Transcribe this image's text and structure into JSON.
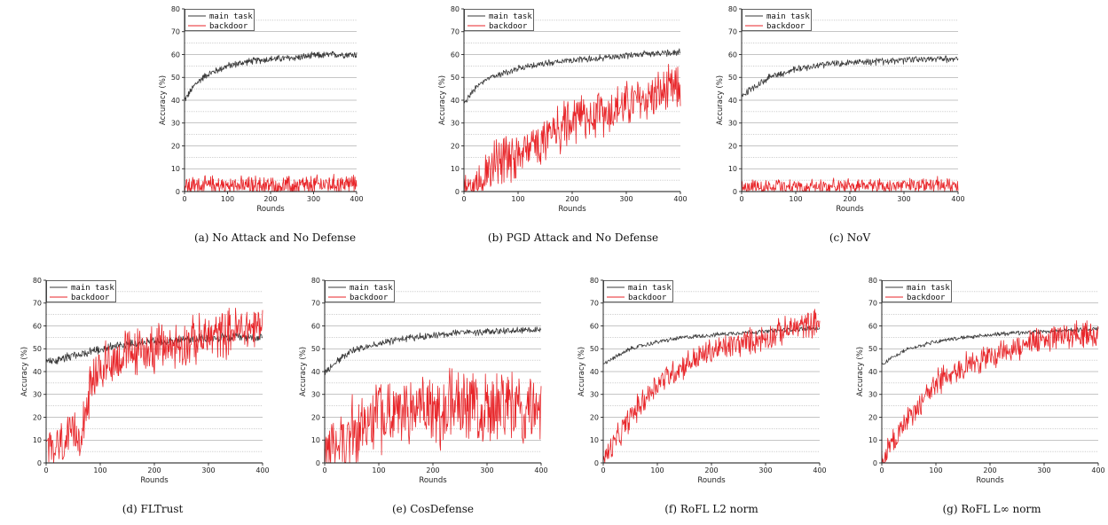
{
  "chart_data": [
    {
      "type": "line",
      "caption": "(a)  No Attack and No Defense",
      "xlabel": "Rounds",
      "ylabel": "Accuracy  (%)",
      "xlim": [
        0,
        400
      ],
      "ylim": [
        0,
        80
      ],
      "xticks": [
        0,
        100,
        200,
        300,
        400
      ],
      "yticks": [
        0,
        10,
        20,
        30,
        40,
        50,
        60,
        70,
        80
      ],
      "legend": "top-left",
      "series": [
        {
          "name": "main task",
          "color": "#3a3a3a",
          "x": [
            0,
            25,
            50,
            100,
            150,
            200,
            250,
            300,
            350,
            400
          ],
          "values": [
            40,
            47,
            51,
            55,
            57,
            58,
            58.5,
            59.5,
            60,
            60
          ],
          "noise": 1.3
        },
        {
          "name": "backdoor",
          "color": "#e8262a",
          "x": [
            0,
            100,
            200,
            300,
            400
          ],
          "values": [
            2.5,
            2.5,
            2.5,
            3,
            3.5
          ],
          "noise": 3.5,
          "floor": 0
        }
      ]
    },
    {
      "type": "line",
      "caption": "(b)  PGD Attack and No Defense",
      "xlabel": "Rounds",
      "ylabel": "Accuracy  (%)",
      "xlim": [
        0,
        400
      ],
      "ylim": [
        0,
        80
      ],
      "xticks": [
        0,
        100,
        200,
        300,
        400
      ],
      "yticks": [
        0,
        10,
        20,
        30,
        40,
        50,
        60,
        70,
        80
      ],
      "legend": "top-left",
      "series": [
        {
          "name": "main task",
          "color": "#3a3a3a",
          "x": [
            0,
            25,
            50,
            100,
            150,
            200,
            250,
            300,
            350,
            400
          ],
          "values": [
            39,
            46,
            50,
            54,
            56,
            57.5,
            58.5,
            59.5,
            60.5,
            61
          ],
          "noise": 1.2
        },
        {
          "name": "backdoor",
          "color": "#e8262a",
          "x": [
            0,
            20,
            50,
            100,
            150,
            200,
            250,
            300,
            350,
            400
          ],
          "values": [
            1,
            4,
            10,
            17,
            24,
            30,
            34,
            38,
            42,
            45
          ],
          "noise": 9,
          "floor": 0
        }
      ]
    },
    {
      "type": "line",
      "caption": "(c)  NoV",
      "xlabel": "Rounds",
      "ylabel": "Accuracy  (%)",
      "xlim": [
        0,
        400
      ],
      "ylim": [
        0,
        80
      ],
      "xticks": [
        0,
        100,
        200,
        300,
        400
      ],
      "yticks": [
        0,
        10,
        20,
        30,
        40,
        50,
        60,
        70,
        80
      ],
      "legend": "top-left",
      "series": [
        {
          "name": "main task",
          "color": "#3a3a3a",
          "x": [
            0,
            25,
            50,
            100,
            150,
            200,
            250,
            300,
            350,
            400
          ],
          "values": [
            42,
            46,
            50,
            53.5,
            55.5,
            56.5,
            57,
            57.5,
            58,
            58
          ],
          "noise": 1.3
        },
        {
          "name": "backdoor",
          "color": "#e8262a",
          "x": [
            0,
            100,
            200,
            300,
            400
          ],
          "values": [
            2,
            2,
            2.5,
            2.5,
            3
          ],
          "noise": 2.8,
          "floor": 0
        }
      ]
    },
    {
      "type": "line",
      "caption": "(d)  FLTrust",
      "xlabel": "Rounds",
      "ylabel": "Accuracy  (%)",
      "xlim": [
        0,
        400
      ],
      "ylim": [
        0,
        80
      ],
      "xticks": [
        0,
        100,
        200,
        300,
        400
      ],
      "yticks": [
        0,
        10,
        20,
        30,
        40,
        50,
        60,
        70,
        80
      ],
      "legend": "top-left",
      "series": [
        {
          "name": "main task",
          "color": "#3a3a3a",
          "x": [
            0,
            50,
            100,
            150,
            200,
            250,
            300,
            350,
            400
          ],
          "values": [
            44,
            47,
            50,
            52,
            53,
            54,
            54.5,
            55,
            55
          ],
          "noise": 1.6
        },
        {
          "name": "backdoor",
          "color": "#e8262a",
          "x": [
            0,
            30,
            60,
            80,
            100,
            150,
            200,
            250,
            300,
            350,
            400
          ],
          "values": [
            5,
            8,
            12,
            30,
            42,
            48,
            50,
            52,
            55,
            58,
            60
          ],
          "noise": 9,
          "floor": 0
        }
      ]
    },
    {
      "type": "line",
      "caption": "(e)  CosDefense",
      "xlabel": "Rounds",
      "ylabel": "Accuracy  (%)",
      "xlim": [
        0,
        400
      ],
      "ylim": [
        0,
        80
      ],
      "xticks": [
        0,
        100,
        200,
        300,
        400
      ],
      "yticks": [
        0,
        10,
        20,
        30,
        40,
        50,
        60,
        70,
        80
      ],
      "legend": "top-left",
      "series": [
        {
          "name": "main task",
          "color": "#3a3a3a",
          "x": [
            0,
            25,
            50,
            100,
            150,
            200,
            250,
            300,
            350,
            400
          ],
          "values": [
            40,
            45,
            49,
            52.5,
            54.5,
            56,
            57,
            57.5,
            58,
            58.5
          ],
          "noise": 1.3
        },
        {
          "name": "backdoor",
          "color": "#e8262a",
          "x": [
            0,
            30,
            60,
            100,
            150,
            200,
            250,
            300,
            350,
            400
          ],
          "values": [
            3,
            8,
            14,
            20,
            22,
            24,
            25,
            25,
            24,
            24
          ],
          "noise": 14,
          "floor": 0
        }
      ]
    },
    {
      "type": "line",
      "caption": "(f)  RoFL L2 norm",
      "xlabel": "Rounds",
      "ylabel": "Accuracy  (%)",
      "xlim": [
        0,
        400
      ],
      "ylim": [
        0,
        80
      ],
      "xticks": [
        0,
        100,
        200,
        300,
        400
      ],
      "yticks": [
        0,
        10,
        20,
        30,
        40,
        50,
        60,
        70,
        80
      ],
      "legend": "top-left",
      "series": [
        {
          "name": "main task",
          "color": "#3a3a3a",
          "x": [
            0,
            25,
            50,
            100,
            150,
            200,
            250,
            300,
            350,
            400
          ],
          "values": [
            43,
            47,
            50,
            53,
            55,
            56,
            57,
            57.5,
            58.5,
            59
          ],
          "noise": 0.8
        },
        {
          "name": "backdoor",
          "color": "#e8262a",
          "x": [
            0,
            25,
            50,
            100,
            150,
            200,
            250,
            300,
            350,
            400
          ],
          "values": [
            1,
            10,
            20,
            35,
            43,
            49,
            52,
            55,
            59,
            62
          ],
          "noise": 5,
          "floor": 0
        }
      ]
    },
    {
      "type": "line",
      "caption": "(g)  RoFL L∞ norm",
      "xlabel": "Rounds",
      "ylabel": "Accuracy  (%)",
      "xlim": [
        0,
        400
      ],
      "ylim": [
        0,
        80
      ],
      "xticks": [
        0,
        100,
        200,
        300,
        400
      ],
      "yticks": [
        0,
        10,
        20,
        30,
        40,
        50,
        60,
        70,
        80
      ],
      "legend": "top-left",
      "series": [
        {
          "name": "main task",
          "color": "#3a3a3a",
          "x": [
            0,
            25,
            50,
            100,
            150,
            200,
            250,
            300,
            350,
            400
          ],
          "values": [
            43,
            47,
            50,
            53,
            55,
            56,
            57,
            57.5,
            58,
            59
          ],
          "noise": 0.8
        },
        {
          "name": "backdoor",
          "color": "#e8262a",
          "x": [
            0,
            25,
            50,
            100,
            150,
            200,
            250,
            300,
            350,
            400
          ],
          "values": [
            1,
            10,
            20,
            35,
            42,
            47,
            51,
            54,
            56,
            58
          ],
          "noise": 5,
          "floor": 0
        }
      ]
    }
  ]
}
